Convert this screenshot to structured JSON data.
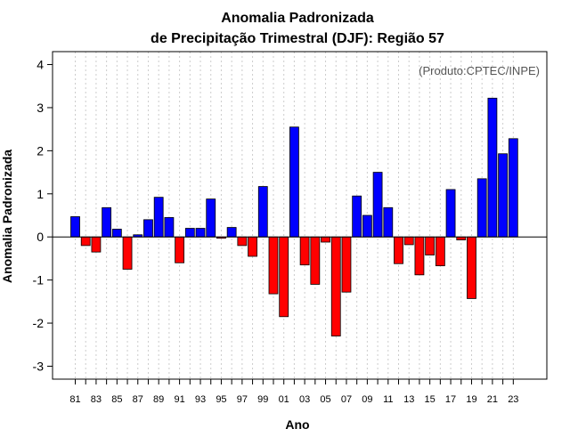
{
  "chart_data": {
    "type": "bar",
    "title": "Anomalia Padronizada",
    "subtitle": "de Precipitação Trimestral (DJF): Região 57",
    "xlabel": "Ano",
    "ylabel": "Anomalia Padronizada",
    "annotation": "(Produto:CPTEC/INPE)",
    "ylim": [
      -3.3,
      4.3
    ],
    "yticks": [
      -3,
      -2,
      -1,
      0,
      1,
      2,
      3,
      4
    ],
    "grid": "vertical dotted",
    "categories": [
      "81",
      "82",
      "83",
      "84",
      "85",
      "86",
      "87",
      "88",
      "89",
      "90",
      "91",
      "92",
      "93",
      "94",
      "95",
      "96",
      "97",
      "98",
      "99",
      "00",
      "01",
      "02",
      "03",
      "04",
      "05",
      "06",
      "07",
      "08",
      "09",
      "10",
      "11",
      "12",
      "13",
      "14",
      "15",
      "16",
      "17",
      "18",
      "19",
      "20",
      "21",
      "22",
      "23"
    ],
    "xtick_labels": [
      "81",
      "83",
      "85",
      "87",
      "89",
      "91",
      "93",
      "95",
      "97",
      "99",
      "01",
      "03",
      "05",
      "07",
      "09",
      "11",
      "13",
      "15",
      "17",
      "19",
      "21",
      "23"
    ],
    "values": [
      0.47,
      -0.2,
      -0.35,
      0.68,
      0.18,
      -0.75,
      0.05,
      0.4,
      0.92,
      0.45,
      -0.6,
      0.2,
      0.2,
      0.88,
      -0.03,
      0.22,
      -0.2,
      -0.45,
      1.17,
      -1.32,
      -1.85,
      2.55,
      -0.65,
      -1.1,
      -0.12,
      -2.3,
      -1.28,
      0.95,
      0.5,
      1.5,
      0.68,
      -0.62,
      -0.18,
      -0.88,
      -0.42,
      -0.67,
      1.1,
      -0.07,
      -1.43,
      1.35,
      3.22,
      1.93,
      2.28
    ],
    "colors": {
      "positive": "#0000ff",
      "negative": "#ff0000",
      "grid": "#cccccc",
      "zero_line": "#000000"
    }
  }
}
